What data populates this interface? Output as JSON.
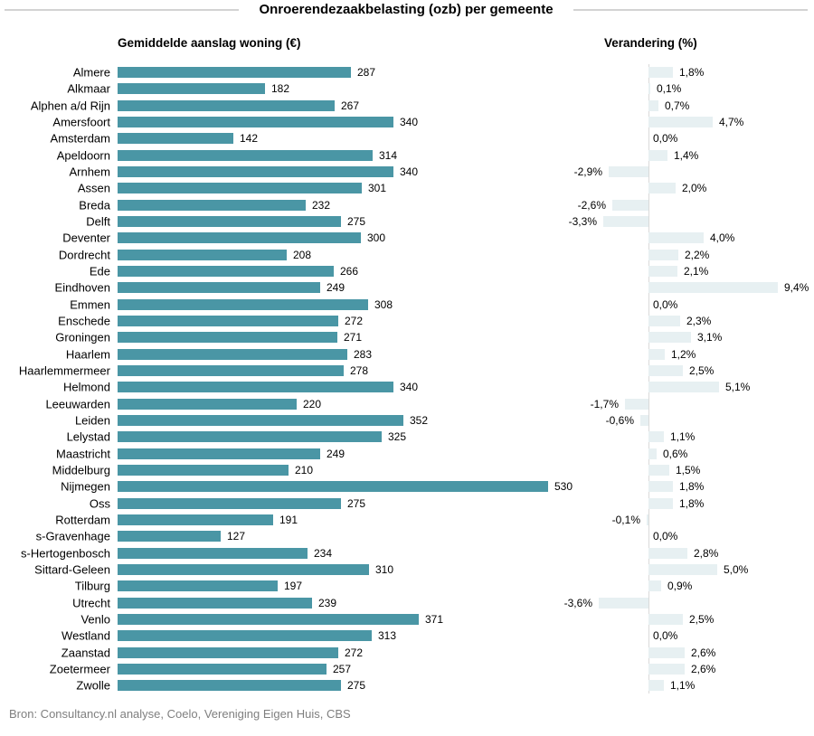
{
  "title": "Onroerendezaakbelasting (ozb) per gemeente",
  "source": "Bron: Consultancy.nl analyse, Coelo, Vereniging Eigen Huis, CBS",
  "colors": {
    "amount_bar": "#4a96a5",
    "change_bar": "#e7f0f2",
    "baseline": "#d9d9d9",
    "title_line": "#d3d3d3",
    "source_text": "#7f7f7f"
  },
  "chart_data": {
    "type": "bar",
    "orientation": "horizontal",
    "title": "Onroerendezaakbelasting (ozb) per gemeente",
    "panels": [
      {
        "title": "Gemiddelde aanslag woning (€)",
        "unit": "EUR",
        "xlim": [
          0,
          530
        ]
      },
      {
        "title": "Verandering (%)",
        "unit": "%",
        "xlim": [
          -3.6,
          9.4
        ]
      }
    ],
    "legend_position": "none",
    "grid": false,
    "categories": [
      "Almere",
      "Alkmaar",
      "Alphen a/d Rijn",
      "Amersfoort",
      "Amsterdam",
      "Apeldoorn",
      "Arnhem",
      "Assen",
      "Breda",
      "Delft",
      "Deventer",
      "Dordrecht",
      "Ede",
      "Eindhoven",
      "Emmen",
      "Enschede",
      "Groningen",
      "Haarlem",
      "Haarlemmermeer",
      "Helmond",
      "Leeuwarden",
      "Leiden",
      "Lelystad",
      "Maastricht",
      "Middelburg",
      "Nijmegen",
      "Oss",
      "Rotterdam",
      "s-Gravenhage",
      "s-Hertogenbosch",
      "Sittard-Geleen",
      "Tilburg",
      "Utrecht",
      "Venlo",
      "Westland",
      "Zaanstad",
      "Zoetermeer",
      "Zwolle"
    ],
    "series": [
      {
        "name": "Gemiddelde aanslag woning (€)",
        "values": [
          287,
          182,
          267,
          340,
          142,
          314,
          340,
          301,
          232,
          275,
          300,
          208,
          266,
          249,
          308,
          272,
          271,
          283,
          278,
          340,
          220,
          352,
          325,
          249,
          210,
          530,
          275,
          191,
          127,
          234,
          310,
          197,
          239,
          371,
          313,
          272,
          257,
          275
        ],
        "labels": [
          "287",
          "182",
          "267",
          "340",
          "142",
          "314",
          "340",
          "301",
          "232",
          "275",
          "300",
          "208",
          "266",
          "249",
          "308",
          "272",
          "271",
          "283",
          "278",
          "340",
          "220",
          "352",
          "325",
          "249",
          "210",
          "530",
          "275",
          "191",
          "127",
          "234",
          "310",
          "197",
          "239",
          "371",
          "313",
          "272",
          "257",
          "275"
        ]
      },
      {
        "name": "Verandering (%)",
        "values": [
          1.8,
          0.1,
          0.7,
          4.7,
          0.0,
          1.4,
          -2.9,
          2.0,
          -2.6,
          -3.3,
          4.0,
          2.2,
          2.1,
          9.4,
          0.0,
          2.3,
          3.1,
          1.2,
          2.5,
          5.1,
          -1.7,
          -0.6,
          1.1,
          0.6,
          1.5,
          1.8,
          1.8,
          -0.1,
          0.0,
          2.8,
          5.0,
          0.9,
          -3.6,
          2.5,
          0.0,
          2.6,
          2.6,
          1.1
        ],
        "labels": [
          "1,8%",
          "0,1%",
          "0,7%",
          "4,7%",
          "0,0%",
          "1,4%",
          "-2,9%",
          "2,0%",
          "-2,6%",
          "-3,3%",
          "4,0%",
          "2,2%",
          "2,1%",
          "9,4%",
          "0,0%",
          "2,3%",
          "3,1%",
          "1,2%",
          "2,5%",
          "5,1%",
          "-1,7%",
          "-0,6%",
          "1,1%",
          "0,6%",
          "1,5%",
          "1,8%",
          "1,8%",
          "-0,1%",
          "0,0%",
          "2,8%",
          "5,0%",
          "0,9%",
          "-3,6%",
          "2,5%",
          "0,0%",
          "2,6%",
          "2,6%",
          "1,1%"
        ]
      }
    ]
  }
}
